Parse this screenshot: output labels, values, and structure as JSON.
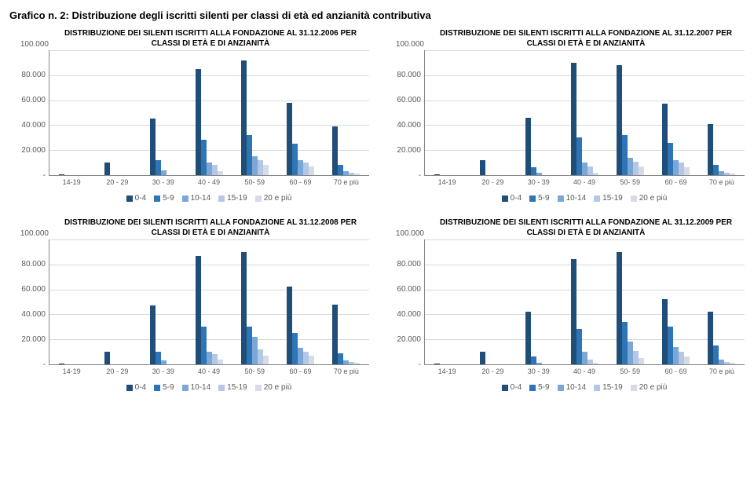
{
  "page_title": "Grafico n. 2: Distribuzione degli iscritti silenti per classi di età ed anzianità contributiva",
  "colors": {
    "series": [
      "#1f4e79",
      "#2e75b6",
      "#7ba7d7",
      "#b4c7e7",
      "#d6dce5"
    ],
    "grid": "#d9d9d9",
    "axis": "#868686"
  },
  "series_labels": [
    "0-4",
    "5-9",
    "10-14",
    "15-19",
    "20 e più"
  ],
  "categories": [
    "14-19",
    "20 - 29",
    "30 - 39",
    "40 - 49",
    "50- 59",
    "60 - 69",
    "70 e più"
  ],
  "y_ticks": [
    "100.000",
    "80.000",
    "60.000",
    "40.000",
    "20.000",
    "-"
  ],
  "y_max": 100000,
  "panels": [
    {
      "title": "DISTRIBUZIONE DEI SILENTI ISCRITTI ALLA FONDAZIONE AL 31.12.2006 PER CLASSI DI ETÀ E DI ANZIANITÀ",
      "data": [
        [
          500,
          0,
          0,
          0,
          0
        ],
        [
          10000,
          0,
          0,
          0,
          0
        ],
        [
          45000,
          12000,
          4000,
          0,
          0
        ],
        [
          85000,
          28000,
          10000,
          8000,
          3000
        ],
        [
          92000,
          32000,
          15000,
          12000,
          8000
        ],
        [
          58000,
          25000,
          12000,
          10000,
          7000
        ],
        [
          39000,
          8000,
          3000,
          2000,
          1000
        ]
      ]
    },
    {
      "title": "DISTRIBUZIONE DEI SILENTI ISCRITTI ALLA FONDAZIONE AL 31.12.2007 PER CLASSI DI ETÀ E DI ANZIANITÀ",
      "data": [
        [
          500,
          0,
          0,
          0,
          0
        ],
        [
          12000,
          0,
          0,
          0,
          0
        ],
        [
          46000,
          6000,
          2000,
          0,
          0
        ],
        [
          90000,
          30000,
          10000,
          7000,
          2000
        ],
        [
          88000,
          32000,
          14000,
          11000,
          7000
        ],
        [
          57000,
          26000,
          12000,
          10000,
          6000
        ],
        [
          41000,
          8000,
          3000,
          2000,
          1000
        ]
      ]
    },
    {
      "title": "DISTRIBUZIONE DEI SILENTI ISCRITTI ALLA FONDAZIONE AL 31.12.2008 PER CLASSI DI ETÀ E DI ANZIANITÀ",
      "data": [
        [
          500,
          0,
          0,
          0,
          0
        ],
        [
          10000,
          0,
          0,
          0,
          0
        ],
        [
          47000,
          10000,
          3000,
          0,
          0
        ],
        [
          87000,
          30000,
          10000,
          8000,
          4000
        ],
        [
          90000,
          30000,
          22000,
          12000,
          7000
        ],
        [
          62000,
          25000,
          13000,
          10000,
          7000
        ],
        [
          48000,
          9000,
          3000,
          2000,
          1000
        ]
      ]
    },
    {
      "title": "DISTRIBUZIONE DEI SILENTI ISCRITTI ALLA FONDAZIONE AL 31.12.2009 PER CLASSI DI ETÀ E DI ANZIANITÀ",
      "data": [
        [
          500,
          0,
          0,
          0,
          0
        ],
        [
          10000,
          0,
          0,
          0,
          0
        ],
        [
          42000,
          6000,
          1000,
          0,
          0
        ],
        [
          84000,
          28000,
          10000,
          4000,
          1000
        ],
        [
          90000,
          34000,
          18000,
          11000,
          5000
        ],
        [
          52000,
          30000,
          14000,
          10000,
          6000
        ],
        [
          42000,
          15000,
          4000,
          2000,
          1000
        ]
      ]
    }
  ]
}
